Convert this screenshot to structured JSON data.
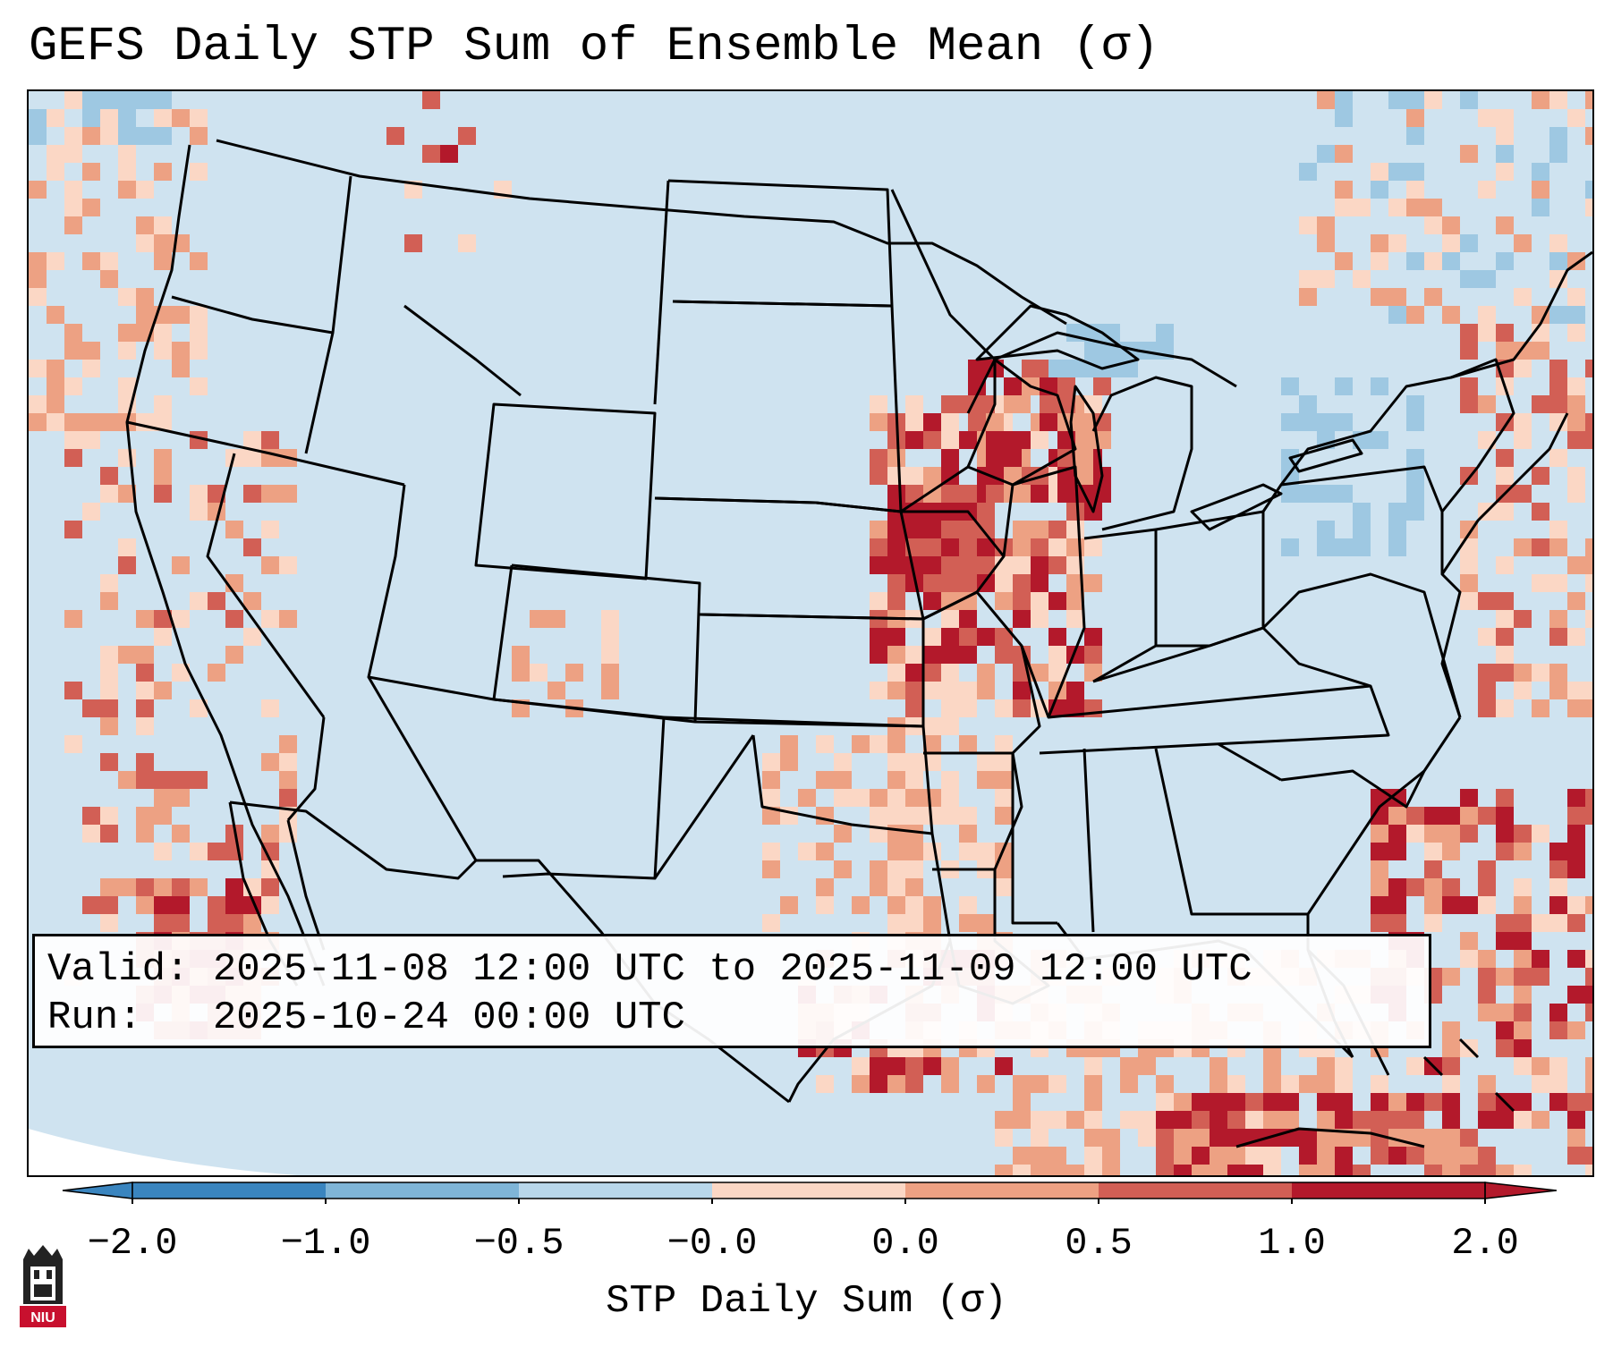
{
  "title": "GEFS Daily STP Sum of Ensemble Mean (σ)",
  "info": {
    "valid_label": "Valid:",
    "valid_value": "2025-11-08 12:00 UTC to 2025-11-09 12:00 UTC",
    "run_label": "Run:",
    "run_value": "2025-10-24 00:00 UTC"
  },
  "colorbar": {
    "label": "STP Daily Sum (σ)",
    "ticks": [
      "−2.0",
      "−1.0",
      "−0.5",
      "−0.0",
      "0.0",
      "0.5",
      "1.0",
      "2.0"
    ],
    "colors": [
      "#3a85bf",
      "#7fb5d7",
      "#b9d7ea",
      "#e8eff4",
      "#fbd7c5",
      "#eda183",
      "#d25f55",
      "#b3192b"
    ]
  },
  "map": {
    "projection": "Lambert Conformal",
    "region": "Continental United States",
    "ocean_color": "#cfe3f0",
    "field_colors": {
      "weak_positive": "#fbd7c5",
      "moderate_positive": "#eda183",
      "strong_positive": "#d25f55",
      "extreme_positive": "#b3192b",
      "weak_negative": "#9ec8e2"
    }
  },
  "logo": {
    "text": "NIU",
    "color": "#c8102e"
  }
}
